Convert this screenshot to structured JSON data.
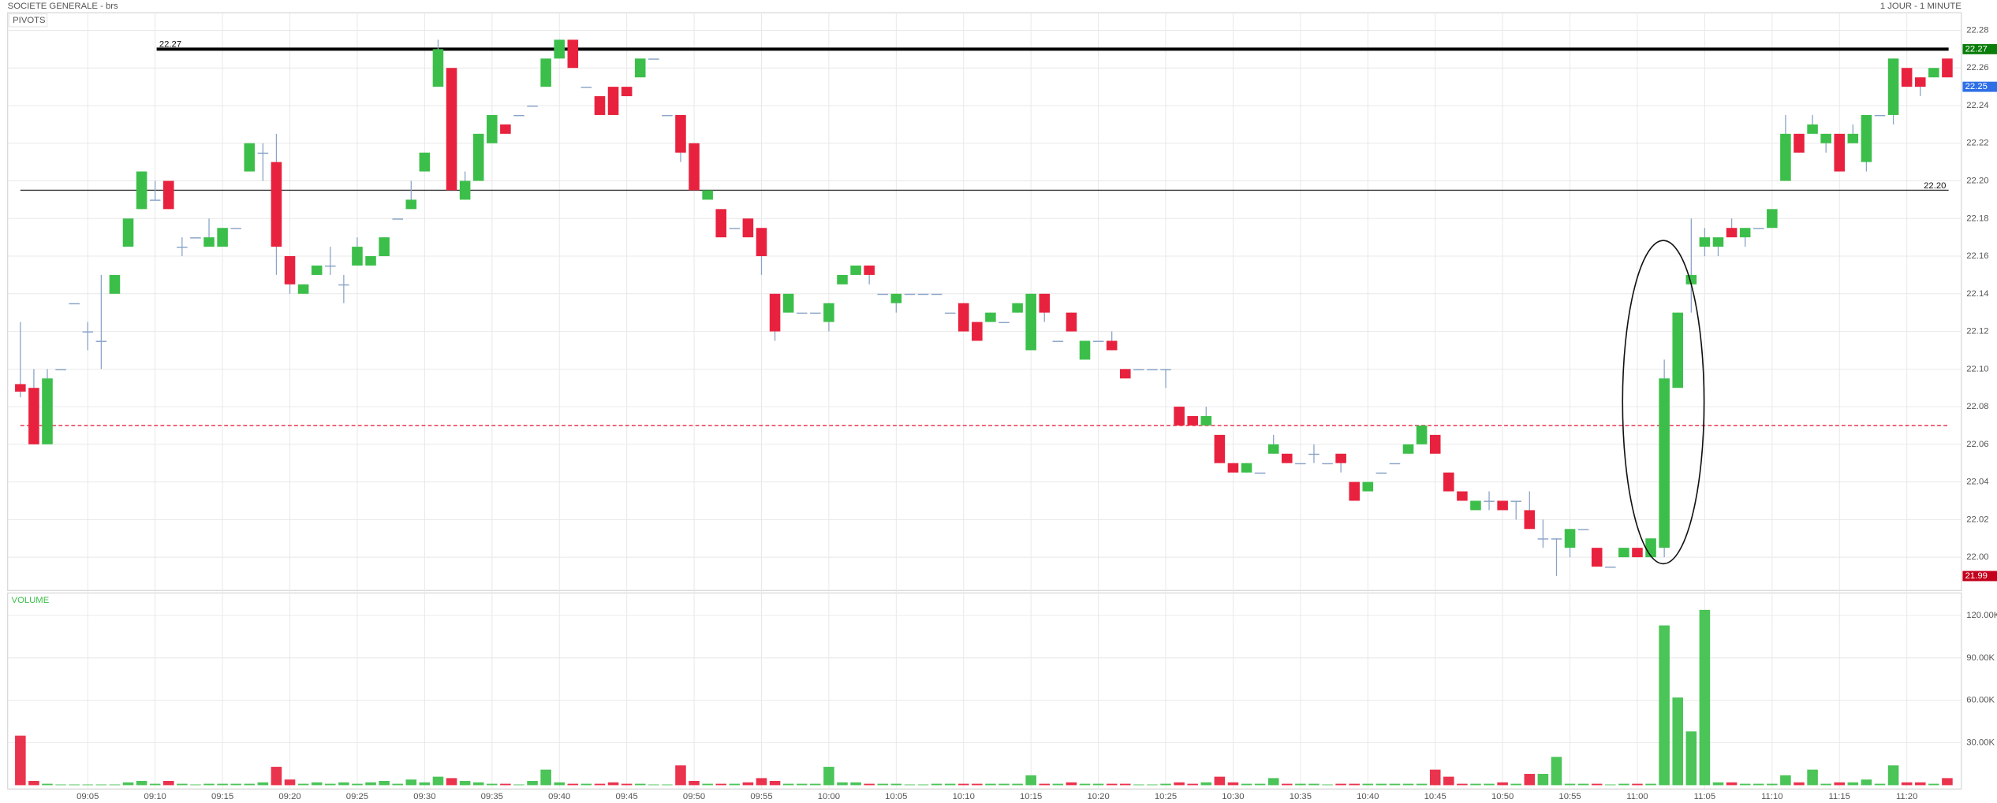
{
  "chart_data": {
    "type": "candlestick",
    "title": "SOCIETE GENERALE - brs",
    "subtitle": "1 JOUR - 1 MINUTE",
    "panel_label": "PIVOTS",
    "categories": [
      null,
      null,
      null,
      null,
      null,
      "09:05",
      null,
      null,
      null,
      null,
      "09:10",
      null,
      null,
      null,
      null,
      "09:15",
      null,
      null,
      null,
      null,
      "09:20",
      null,
      null,
      null,
      null,
      "09:25",
      null,
      null,
      null,
      null,
      "09:30",
      null,
      null,
      null,
      null,
      "09:35",
      null,
      null,
      null,
      null,
      "09:40",
      null,
      null,
      null,
      null,
      "09:45",
      null,
      null,
      null,
      null,
      "09:50",
      null,
      null,
      null,
      null,
      "09:55",
      null,
      null,
      null,
      null,
      "10:00",
      null,
      null,
      null,
      null,
      "10:05",
      null,
      null,
      null,
      null,
      "10:10",
      null,
      null,
      null,
      null,
      "10:15",
      null,
      null,
      null,
      null,
      "10:20",
      null,
      null,
      null,
      null,
      "10:25",
      null,
      null,
      null,
      null,
      "10:30",
      null,
      null,
      null,
      null,
      "10:35",
      null,
      null,
      null,
      null,
      "10:40",
      null,
      null,
      null,
      null,
      "10:45",
      null,
      null,
      null,
      null,
      "10:50",
      null,
      null,
      null,
      null,
      "10:55",
      null,
      null,
      null,
      null,
      "11:00",
      null,
      null,
      null,
      null,
      "11:05",
      null,
      null,
      null,
      null,
      "11:10",
      null,
      null,
      null,
      null,
      "11:15",
      null,
      null,
      null,
      null,
      "11:20",
      null,
      null,
      null
    ],
    "open": [
      22.092,
      22.09,
      22.06,
      22.1,
      22.135,
      22.12,
      22.115,
      22.14,
      22.165,
      22.185,
      22.19,
      22.2,
      22.165,
      22.17,
      22.165,
      22.165,
      22.175,
      22.205,
      22.215,
      22.21,
      22.16,
      22.14,
      22.15,
      22.155,
      22.145,
      22.155,
      22.155,
      22.16,
      22.18,
      22.185,
      22.205,
      22.25,
      22.26,
      22.19,
      22.2,
      22.22,
      22.23,
      22.235,
      22.24,
      22.25,
      22.265,
      22.275,
      22.25,
      22.245,
      22.25,
      22.25,
      22.255,
      22.265,
      22.235,
      22.235,
      22.22,
      22.19,
      22.185,
      22.175,
      22.18,
      22.175,
      22.14,
      22.13,
      22.13,
      22.13,
      22.125,
      22.145,
      22.15,
      22.155,
      22.14,
      22.135,
      22.14,
      22.14,
      22.14,
      22.13,
      22.135,
      22.125,
      22.125,
      22.125,
      22.13,
      22.11,
      22.14,
      22.115,
      22.13,
      22.105,
      22.115,
      22.115,
      22.1,
      22.1,
      22.1,
      22.1,
      22.08,
      22.075,
      22.07,
      22.065,
      22.05,
      22.045,
      22.045,
      22.055,
      22.055,
      22.05,
      22.055,
      22.05,
      22.055,
      22.04,
      22.035,
      22.045,
      22.05,
      22.055,
      22.06,
      22.065,
      22.045,
      22.035,
      22.025,
      22.03,
      22.03,
      22.03,
      22.025,
      22.01,
      22.01,
      22.005,
      22.015,
      22.005,
      21.995,
      22,
      22.005,
      22,
      22.005,
      22.09,
      22.145,
      22.165,
      22.165,
      22.175,
      22.17,
      22.175,
      22.175,
      22.2,
      22.225,
      22.225,
      22.22,
      22.225,
      22.22,
      22.21,
      22.235,
      22.235,
      22.26,
      22.255,
      22.255,
      22.265
    ],
    "high": [
      22.125,
      22.1,
      22.1,
      22.1,
      22.135,
      22.125,
      22.15,
      22.15,
      22.18,
      22.205,
      22.2,
      22.2,
      22.17,
      22.17,
      22.18,
      22.175,
      22.175,
      22.22,
      22.22,
      22.225,
      22.16,
      22.145,
      22.155,
      22.165,
      22.15,
      22.17,
      22.16,
      22.17,
      22.18,
      22.2,
      22.215,
      22.275,
      22.26,
      22.205,
      22.225,
      22.235,
      22.23,
      22.235,
      22.24,
      22.265,
      22.275,
      22.275,
      22.25,
      22.245,
      22.25,
      22.25,
      22.265,
      22.265,
      22.235,
      22.235,
      22.22,
      22.195,
      22.185,
      22.175,
      22.18,
      22.175,
      22.14,
      22.14,
      22.13,
      22.13,
      22.135,
      22.15,
      22.155,
      22.155,
      22.14,
      22.14,
      22.14,
      22.14,
      22.14,
      22.13,
      22.135,
      22.125,
      22.13,
      22.125,
      22.135,
      22.14,
      22.14,
      22.115,
      22.13,
      22.115,
      22.115,
      22.12,
      22.1,
      22.1,
      22.1,
      22.1,
      22.08,
      22.075,
      22.08,
      22.065,
      22.05,
      22.05,
      22.045,
      22.065,
      22.055,
      22.05,
      22.06,
      22.05,
      22.055,
      22.04,
      22.04,
      22.045,
      22.05,
      22.06,
      22.07,
      22.065,
      22.045,
      22.035,
      22.03,
      22.035,
      22.03,
      22.03,
      22.035,
      22.02,
      22.01,
      22.015,
      22.015,
      22.005,
      21.995,
      22.005,
      22.005,
      22.01,
      22.105,
      22.13,
      22.18,
      22.175,
      22.17,
      22.18,
      22.175,
      22.175,
      22.185,
      22.235,
      22.225,
      22.235,
      22.225,
      22.225,
      22.23,
      22.235,
      22.235,
      22.265,
      22.26,
      22.255,
      22.26,
      22.265
    ],
    "low": [
      22.085,
      22.06,
      22.06,
      22.1,
      22.135,
      22.11,
      22.1,
      22.14,
      22.165,
      22.185,
      22.19,
      22.185,
      22.16,
      22.17,
      22.165,
      22.165,
      22.175,
      22.205,
      22.2,
      22.15,
      22.14,
      22.14,
      22.15,
      22.15,
      22.135,
      22.155,
      22.155,
      22.16,
      22.18,
      22.185,
      22.205,
      22.25,
      22.195,
      22.19,
      22.2,
      22.22,
      22.225,
      22.235,
      22.24,
      22.25,
      22.265,
      22.26,
      22.25,
      22.235,
      22.235,
      22.245,
      22.255,
      22.265,
      22.235,
      22.21,
      22.195,
      22.19,
      22.17,
      22.175,
      22.17,
      22.15,
      22.115,
      22.13,
      22.13,
      22.13,
      22.12,
      22.145,
      22.15,
      22.145,
      22.14,
      22.13,
      22.14,
      22.14,
      22.14,
      22.13,
      22.12,
      22.115,
      22.125,
      22.125,
      22.13,
      22.11,
      22.125,
      22.115,
      22.12,
      22.105,
      22.115,
      22.11,
      22.095,
      22.1,
      22.1,
      22.09,
      22.07,
      22.07,
      22.07,
      22.05,
      22.045,
      22.045,
      22.045,
      22.055,
      22.05,
      22.05,
      22.05,
      22.05,
      22.045,
      22.03,
      22.035,
      22.045,
      22.05,
      22.055,
      22.06,
      22.055,
      22.035,
      22.03,
      22.025,
      22.025,
      22.025,
      22.02,
      22.015,
      22.005,
      21.99,
      22,
      22.015,
      21.995,
      21.995,
      22,
      22,
      22,
      22,
      22.09,
      22.13,
      22.16,
      22.16,
      22.17,
      22.165,
      22.175,
      22.175,
      22.2,
      22.215,
      22.225,
      22.215,
      22.205,
      22.22,
      22.205,
      22.235,
      22.23,
      22.25,
      22.245,
      22.255,
      22.255
    ],
    "close": [
      22.088,
      22.06,
      22.095,
      22.1,
      22.135,
      22.12,
      22.115,
      22.15,
      22.18,
      22.205,
      22.19,
      22.185,
      22.165,
      22.17,
      22.17,
      22.175,
      22.175,
      22.22,
      22.215,
      22.165,
      22.145,
      22.145,
      22.155,
      22.155,
      22.145,
      22.165,
      22.16,
      22.17,
      22.18,
      22.19,
      22.215,
      22.27,
      22.195,
      22.2,
      22.225,
      22.235,
      22.225,
      22.235,
      22.24,
      22.265,
      22.275,
      22.26,
      22.25,
      22.235,
      22.235,
      22.245,
      22.265,
      22.265,
      22.235,
      22.215,
      22.195,
      22.195,
      22.17,
      22.175,
      22.17,
      22.16,
      22.12,
      22.14,
      22.13,
      22.13,
      22.135,
      22.15,
      22.155,
      22.15,
      22.14,
      22.14,
      22.14,
      22.14,
      22.14,
      22.13,
      22.12,
      22.115,
      22.13,
      22.125,
      22.135,
      22.14,
      22.13,
      22.115,
      22.12,
      22.115,
      22.115,
      22.11,
      22.095,
      22.1,
      22.1,
      22.1,
      22.07,
      22.07,
      22.075,
      22.05,
      22.045,
      22.05,
      22.045,
      22.06,
      22.05,
      22.05,
      22.055,
      22.05,
      22.05,
      22.03,
      22.04,
      22.045,
      22.05,
      22.06,
      22.07,
      22.055,
      22.035,
      22.03,
      22.03,
      22.03,
      22.025,
      22.03,
      22.015,
      22.01,
      22.01,
      22.015,
      22.015,
      21.995,
      21.995,
      22.005,
      22,
      22.01,
      22.095,
      22.13,
      22.15,
      22.17,
      22.17,
      22.17,
      22.175,
      22.175,
      22.185,
      22.225,
      22.215,
      22.23,
      22.225,
      22.205,
      22.225,
      22.235,
      22.235,
      22.265,
      22.25,
      22.25,
      22.26,
      22.255
    ],
    "up_color": "#3cbf4a",
    "down_color": "#e8223e",
    "doji_color": "#8aa4c8",
    "ylim": [
      21.983,
      22.288
    ],
    "yticks": [
      {
        "value": 22,
        "label": "22.00"
      },
      22.02,
      22.04,
      22.06,
      22.08,
      {
        "value": 22.1,
        "label": "22.10"
      },
      22.12,
      22.14,
      22.16,
      22.18,
      {
        "value": 22.2,
        "label": "22.20"
      },
      22.22,
      22.24,
      22.26,
      22.28
    ],
    "grid": true,
    "lines": [
      {
        "value": 22.27,
        "label": "22.27",
        "color": "#000000",
        "width": 2.5,
        "label_side": "left"
      },
      {
        "value": 22.195,
        "label": "22.20",
        "color": "#333333",
        "width": 0.8,
        "label_side": "right"
      },
      {
        "value": 22.07,
        "color": "#e8223e",
        "width": 0.8,
        "dash": true
      }
    ],
    "price_tags": [
      {
        "value": 22.27,
        "color": "#0a7d0a"
      },
      {
        "value": 22.25,
        "color": "#2f6fe6"
      },
      {
        "value": 21.99,
        "color": "#c4001c"
      }
    ],
    "volume": {
      "label": "VOLUME",
      "values": [
        35000,
        3000,
        1000,
        500,
        500,
        500,
        500,
        500,
        2000,
        3000,
        1000,
        3000,
        1000,
        500,
        1000,
        1000,
        1000,
        1000,
        2000,
        13000,
        4000,
        1000,
        2000,
        1000,
        2000,
        1000,
        2000,
        3000,
        1000,
        4000,
        2000,
        6000,
        5000,
        3000,
        2000,
        1000,
        1000,
        500,
        3000,
        11000,
        2000,
        1000,
        1000,
        1000,
        2000,
        1000,
        1000,
        500,
        500,
        14000,
        3000,
        1000,
        1000,
        1000,
        2000,
        5000,
        3000,
        1000,
        1000,
        1000,
        13000,
        2000,
        2000,
        1000,
        1000,
        1000,
        500,
        500,
        1000,
        1000,
        1000,
        1000,
        1000,
        1000,
        1000,
        7000,
        1000,
        1000,
        2000,
        1000,
        1000,
        1000,
        1000,
        500,
        500,
        1000,
        2000,
        1000,
        2000,
        6000,
        2000,
        1000,
        1000,
        5000,
        1000,
        1000,
        1000,
        500,
        1000,
        1000,
        1000,
        1000,
        1000,
        1000,
        1000,
        11000,
        6000,
        1000,
        1000,
        1000,
        2000,
        1000,
        8000,
        8000,
        20000,
        1000,
        1000,
        1000,
        500,
        1000,
        1000,
        1000,
        113000,
        62000,
        38000,
        124000,
        2000,
        2000,
        1000,
        1000,
        1000,
        7000,
        2000,
        11000,
        1000,
        2000,
        2000,
        4000,
        1000,
        14000,
        2000,
        2000,
        1000,
        5000
      ],
      "ylim": [
        0,
        135000
      ],
      "yticks": [
        {
          "value": 30000,
          "label": "30.00K"
        },
        {
          "value": 60000,
          "label": "60.00K"
        },
        {
          "value": 90000,
          "label": "90.00K"
        },
        {
          "value": 120000,
          "label": "120.00K"
        }
      ]
    }
  }
}
